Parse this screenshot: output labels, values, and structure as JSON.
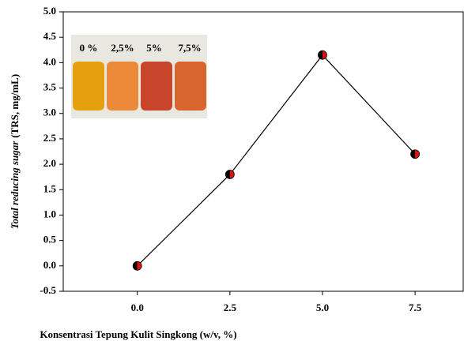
{
  "chart_data": {
    "type": "line",
    "xlabel": "Konsentrasi Tepung Kulit Singkong (w/v, %)",
    "ylabel": [
      "Total reducing sugar",
      "(TRS, mg/mL)"
    ],
    "x": [
      0,
      2.5,
      5,
      7.5
    ],
    "values": [
      0,
      1.8,
      4.15,
      2.2
    ],
    "color": "#000000",
    "marker_colors": [
      "#000000",
      "#e01010"
    ],
    "xlim": [
      -2,
      8.8
    ],
    "xticks": [
      {
        "value": 0,
        "label": "0.0"
      },
      2.5,
      {
        "value": 5,
        "label": "5.0"
      },
      7.5
    ],
    "ylim": [
      -0.5,
      5
    ],
    "yticks": [
      -0.5,
      {
        "value": 0,
        "label": "0.0"
      },
      0.5,
      {
        "value": 1,
        "label": "1.0"
      },
      1.5,
      {
        "value": 2,
        "label": "2.0"
      },
      2.5,
      {
        "value": 3,
        "label": "3.0"
      },
      3.5,
      {
        "value": 4,
        "label": "4.0"
      },
      4.5,
      {
        "value": 5,
        "label": "5.0"
      }
    ],
    "inset_labels": [
      "0 %",
      "2,5%",
      "5%",
      "7,5%"
    ],
    "grid": false
  }
}
